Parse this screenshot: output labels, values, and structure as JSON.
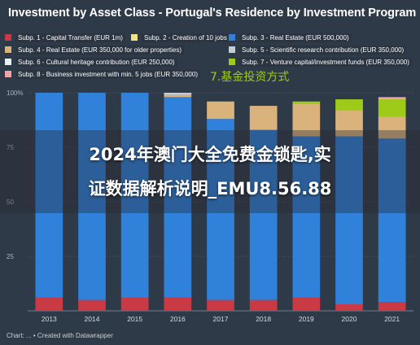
{
  "title": "Investment by Asset Class - Portugal's Residence by Investment Program",
  "form_note": "7.基金投资方式",
  "watermark": {
    "line1": "2024年澳门大全免费金锁匙,实",
    "line2": "证数据解析说明_EMU8.56.88"
  },
  "credit": "Chart: ... • Created with Datawrapper",
  "chart_data": {
    "type": "bar",
    "stacked": true,
    "orientation": "vertical",
    "normalized_percent": true,
    "categories": [
      "2013",
      "2014",
      "2015",
      "2016",
      "2017",
      "2018",
      "2019",
      "2020",
      "2021"
    ],
    "ylim": [
      0,
      100
    ],
    "yticks": [
      {
        "value": 100,
        "label": "100%"
      },
      {
        "value": 75,
        "label": "75"
      },
      {
        "value": 50,
        "label": "50"
      },
      {
        "value": 25,
        "label": "25"
      }
    ],
    "grid": true,
    "legend_position": "top",
    "series": [
      {
        "name": "Subp. 1 - Capital Transfer (EUR 1m)",
        "color": "#c93a45",
        "values": [
          6,
          5,
          6,
          6,
          5,
          5,
          6,
          3,
          4
        ]
      },
      {
        "name": "Subp. 2 - Creation of 10 jobs",
        "color": "#f2e38a",
        "values": [
          0,
          0,
          0,
          0,
          0,
          0,
          0,
          0,
          0
        ]
      },
      {
        "name": "Subp. 3 - Real Estate (EUR 500,000)",
        "color": "#2f81d9",
        "values": [
          94,
          95,
          94,
          92,
          83,
          78,
          74,
          77,
          75
        ]
      },
      {
        "name": "Subp. 4 - Real Estate (EUR 350,000 for older properties)",
        "color": "#d9b27c",
        "values": [
          0,
          0,
          0,
          1,
          8,
          11,
          15,
          12,
          10
        ]
      },
      {
        "name": "Subp. 5 - Scientific research contribution (EUR 350,000)",
        "color": "#c5ccd4",
        "values": [
          0,
          0,
          0,
          1,
          0,
          0,
          0,
          0,
          0
        ]
      },
      {
        "name": "Subp. 6 - Cultural heritage contribution (EUR 250,000)",
        "color": "#e6f0f7",
        "values": [
          0,
          0,
          0,
          0,
          0,
          0,
          0,
          0,
          0
        ]
      },
      {
        "name": "Subp. 7 - Venture capital/investment funds (EUR 350,000)",
        "color": "#9ecb1a",
        "values": [
          0,
          0,
          0,
          0,
          0,
          0,
          1,
          5,
          8
        ]
      },
      {
        "name": "Subp. 8 - Business investment with min. 5 jobs (EUR 350,000)",
        "color": "#f2a3a7",
        "values": [
          0,
          0,
          0,
          0,
          0,
          0,
          0,
          0,
          1
        ]
      }
    ]
  }
}
